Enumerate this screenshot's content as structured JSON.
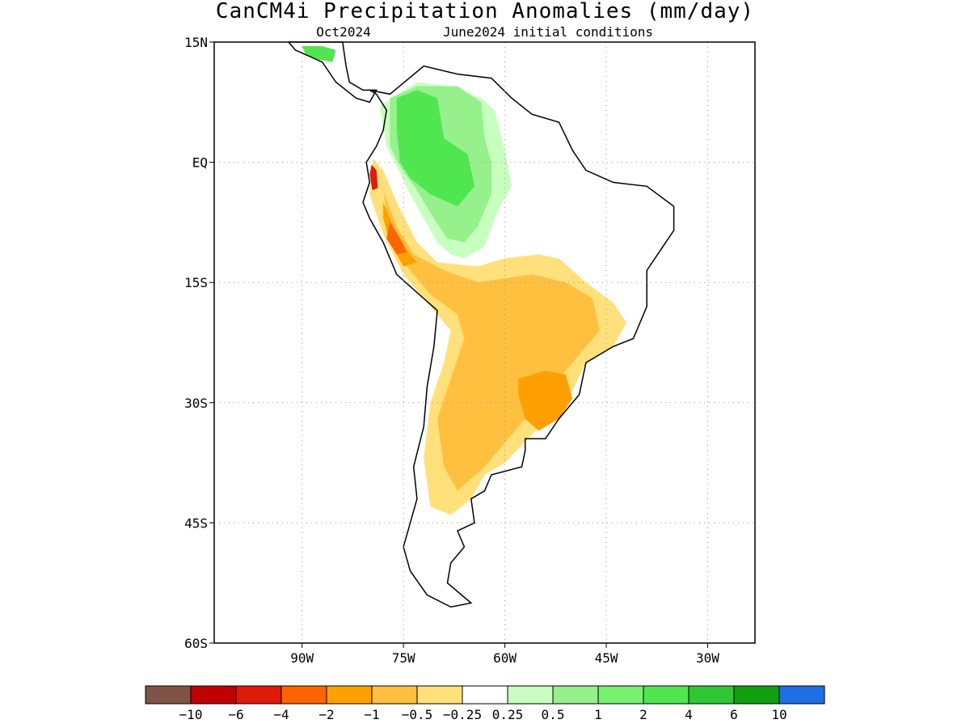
{
  "title": "CanCM4i Precipitation Anomalies (mm/day)",
  "subtitle_left": "Oct2024",
  "subtitle_right": "June2024 initial conditions",
  "map": {
    "lon_range": [
      -103,
      -23
    ],
    "lat_range": [
      -60,
      15
    ],
    "lat_ticks": [
      {
        "value": 15,
        "label": "15N"
      },
      {
        "value": 0,
        "label": "EQ"
      },
      {
        "value": -15,
        "label": "15S"
      },
      {
        "value": -30,
        "label": "30S"
      },
      {
        "value": -45,
        "label": "45S"
      },
      {
        "value": -60,
        "label": "60S"
      }
    ],
    "lon_ticks": [
      {
        "value": -90,
        "label": "90W"
      },
      {
        "value": -75,
        "label": "75W"
      },
      {
        "value": -60,
        "label": "60W"
      },
      {
        "value": -45,
        "label": "45W"
      },
      {
        "value": -30,
        "label": "30W"
      }
    ],
    "grid": true
  },
  "legend": {
    "colors": [
      "#7f5446",
      "#c00000",
      "#e01a0a",
      "#ff6400",
      "#ffa000",
      "#ffc040",
      "#ffe07a",
      "#ffffff",
      "#c8ffc0",
      "#96f08c",
      "#78f070",
      "#50e650",
      "#30c832",
      "#0f9f0f",
      "#1e6ee6"
    ],
    "labels": [
      "−10",
      "−6",
      "−4",
      "−2",
      "−1",
      "−0.5",
      "−0.25",
      "0.25",
      "0.5",
      "1",
      "2",
      "4",
      "6",
      "10"
    ]
  },
  "colors": {
    "wet_light": "#c8ffc0",
    "wet_mid": "#96f08c",
    "wet_strong": "#50e650",
    "wet_heavy": "#30c832",
    "dry_light": "#ffe07a",
    "dry_mid": "#ffc040",
    "dry_strong": "#ffa000",
    "dry_heavy": "#ff6400",
    "dry_extreme": "#e01a0a"
  },
  "shapes": {
    "land": [
      [
        -80,
        9
      ],
      [
        -77,
        8.5
      ],
      [
        -72,
        12
      ],
      [
        -67,
        11
      ],
      [
        -62,
        10.5
      ],
      [
        -59,
        8
      ],
      [
        -56,
        6
      ],
      [
        -52,
        5
      ],
      [
        -50,
        1.5
      ],
      [
        -48,
        -1
      ],
      [
        -44,
        -2.5
      ],
      [
        -39,
        -3
      ],
      [
        -35,
        -5.5
      ],
      [
        -35,
        -8.5
      ],
      [
        -37,
        -11
      ],
      [
        -39,
        -13.5
      ],
      [
        -39,
        -18
      ],
      [
        -41,
        -22
      ],
      [
        -44,
        -23
      ],
      [
        -48,
        -25
      ],
      [
        -49,
        -29
      ],
      [
        -52,
        -32
      ],
      [
        -54,
        -34.5
      ],
      [
        -57,
        -34.5
      ],
      [
        -57,
        -36
      ],
      [
        -57.5,
        -38
      ],
      [
        -62,
        -39
      ],
      [
        -63,
        -41
      ],
      [
        -65,
        -42
      ],
      [
        -64.5,
        -45
      ],
      [
        -67,
        -46
      ],
      [
        -66,
        -48
      ],
      [
        -68,
        -50
      ],
      [
        -68.5,
        -52.5
      ],
      [
        -65,
        -55
      ],
      [
        -68,
        -55.5
      ],
      [
        -71.5,
        -54
      ],
      [
        -74,
        -51
      ],
      [
        -75,
        -48
      ],
      [
        -74,
        -45
      ],
      [
        -73,
        -42
      ],
      [
        -73.5,
        -38
      ],
      [
        -72,
        -33
      ],
      [
        -71.5,
        -28
      ],
      [
        -70.5,
        -23
      ],
      [
        -70,
        -18.5
      ],
      [
        -72,
        -17
      ],
      [
        -76,
        -14
      ],
      [
        -78,
        -10
      ],
      [
        -80,
        -7
      ],
      [
        -81,
        -5
      ],
      [
        -80,
        -2.5
      ],
      [
        -80.5,
        0
      ],
      [
        -79,
        2
      ],
      [
        -78,
        4
      ],
      [
        -77.5,
        6.5
      ],
      [
        -79,
        8.5
      ],
      [
        -80,
        9
      ]
    ],
    "central_america": [
      [
        -92,
        15
      ],
      [
        -88,
        15
      ],
      [
        -84,
        15
      ],
      [
        -83.5,
        12
      ],
      [
        -83,
        10
      ],
      [
        -81,
        9
      ],
      [
        -79,
        9
      ],
      [
        -80,
        7.5
      ],
      [
        -82,
        8
      ],
      [
        -85,
        10
      ],
      [
        -87,
        12.5
      ],
      [
        -91,
        14
      ],
      [
        -92,
        15
      ]
    ],
    "anomalies": [
      {
        "color_key": "wet_light",
        "points": [
          [
            -78.5,
            7
          ],
          [
            -73,
            10
          ],
          [
            -68,
            9.5
          ],
          [
            -63.5,
            8
          ],
          [
            -61.5,
            6.5
          ],
          [
            -60,
            1.5
          ],
          [
            -59,
            -3
          ],
          [
            -61,
            -6
          ],
          [
            -63,
            -10.5
          ],
          [
            -66,
            -12
          ],
          [
            -68,
            -11.5
          ],
          [
            -70,
            -10
          ],
          [
            -72,
            -7
          ],
          [
            -74,
            -4
          ],
          [
            -76,
            -0.5
          ],
          [
            -77.5,
            2
          ],
          [
            -78.5,
            7
          ]
        ]
      },
      {
        "color_key": "wet_mid",
        "points": [
          [
            -77,
            8
          ],
          [
            -73,
            9.5
          ],
          [
            -67,
            9.5
          ],
          [
            -63.5,
            7.5
          ],
          [
            -63,
            3
          ],
          [
            -62,
            0
          ],
          [
            -62,
            -4
          ],
          [
            -64,
            -8
          ],
          [
            -66,
            -10
          ],
          [
            -68.5,
            -9.5
          ],
          [
            -70.5,
            -7
          ],
          [
            -73,
            -3.5
          ],
          [
            -75.5,
            -0.5
          ],
          [
            -77,
            2
          ],
          [
            -77,
            8
          ]
        ]
      },
      {
        "color_key": "wet_strong",
        "points": [
          [
            -76,
            8
          ],
          [
            -73,
            9
          ],
          [
            -70,
            8
          ],
          [
            -69,
            3
          ],
          [
            -65.5,
            1
          ],
          [
            -64.5,
            -3
          ],
          [
            -67,
            -5.5
          ],
          [
            -71,
            -4
          ],
          [
            -74,
            -2
          ],
          [
            -75.5,
            0
          ],
          [
            -76,
            4
          ],
          [
            -76,
            8
          ]
        ]
      },
      {
        "color_key": "wet_strong",
        "points": [
          [
            -90,
            14.5
          ],
          [
            -87,
            14.5
          ],
          [
            -85,
            14
          ],
          [
            -85.5,
            12.5
          ],
          [
            -87.5,
            12.8
          ],
          [
            -89.5,
            13.5
          ],
          [
            -90,
            14.5
          ]
        ]
      },
      {
        "color_key": "dry_light",
        "points": [
          [
            -79.5,
            0.5
          ],
          [
            -78,
            -1
          ],
          [
            -76,
            -5
          ],
          [
            -73,
            -10
          ],
          [
            -70,
            -12.5
          ],
          [
            -64,
            -13
          ],
          [
            -60,
            -12
          ],
          [
            -55,
            -11.5
          ],
          [
            -52,
            -12
          ],
          [
            -48,
            -15
          ],
          [
            -44,
            -17.5
          ],
          [
            -42,
            -20
          ],
          [
            -44,
            -23
          ],
          [
            -48,
            -25
          ],
          [
            -50,
            -28.5
          ],
          [
            -53,
            -31.5
          ],
          [
            -56,
            -34
          ],
          [
            -60,
            -37.5
          ],
          [
            -63,
            -39
          ],
          [
            -65,
            -42
          ],
          [
            -68,
            -44
          ],
          [
            -71,
            -43
          ],
          [
            -72,
            -37
          ],
          [
            -71,
            -30
          ],
          [
            -69,
            -25
          ],
          [
            -68,
            -21
          ],
          [
            -71,
            -18
          ],
          [
            -75,
            -14
          ],
          [
            -78,
            -9
          ],
          [
            -80,
            -4
          ],
          [
            -79.5,
            0.5
          ]
        ]
      },
      {
        "color_key": "dry_mid",
        "points": [
          [
            -78,
            -3.5
          ],
          [
            -76,
            -8
          ],
          [
            -73.5,
            -11.5
          ],
          [
            -69,
            -13.5
          ],
          [
            -64,
            -15
          ],
          [
            -60,
            -14.5
          ],
          [
            -56,
            -14
          ],
          [
            -51,
            -15
          ],
          [
            -47,
            -17
          ],
          [
            -46,
            -21
          ],
          [
            -49,
            -24
          ],
          [
            -52,
            -27
          ],
          [
            -56,
            -31
          ],
          [
            -60,
            -35
          ],
          [
            -63,
            -38
          ],
          [
            -67,
            -41
          ],
          [
            -69,
            -38
          ],
          [
            -70,
            -32
          ],
          [
            -68,
            -27
          ],
          [
            -66,
            -22
          ],
          [
            -67,
            -19
          ],
          [
            -71,
            -16.5
          ],
          [
            -74.5,
            -13
          ],
          [
            -77,
            -9
          ],
          [
            -78,
            -3.5
          ]
        ]
      },
      {
        "color_key": "dry_strong",
        "points": [
          [
            -78,
            -5
          ],
          [
            -76.5,
            -8
          ],
          [
            -74.5,
            -11
          ],
          [
            -73,
            -12.5
          ],
          [
            -75,
            -13
          ],
          [
            -77,
            -10
          ],
          [
            -78,
            -7
          ],
          [
            -78,
            -5
          ]
        ]
      },
      {
        "color_key": "dry_strong",
        "points": [
          [
            -58,
            -27
          ],
          [
            -54,
            -26
          ],
          [
            -51,
            -26.5
          ],
          [
            -50,
            -29.5
          ],
          [
            -52,
            -32
          ],
          [
            -55,
            -33.5
          ],
          [
            -57,
            -32
          ],
          [
            -58,
            -29
          ],
          [
            -58,
            -27
          ]
        ]
      },
      {
        "color_key": "dry_heavy",
        "points": [
          [
            -77,
            -7.5
          ],
          [
            -75.5,
            -9.5
          ],
          [
            -74.5,
            -11.2
          ],
          [
            -76,
            -11.5
          ],
          [
            -77.5,
            -9.5
          ],
          [
            -77,
            -7.5
          ]
        ]
      },
      {
        "color_key": "dry_extreme",
        "points": [
          [
            -79.7,
            -0.3
          ],
          [
            -79,
            -1
          ],
          [
            -78.8,
            -3.2
          ],
          [
            -79.6,
            -3.5
          ],
          [
            -80,
            -1.5
          ],
          [
            -79.7,
            -0.3
          ]
        ]
      }
    ]
  }
}
